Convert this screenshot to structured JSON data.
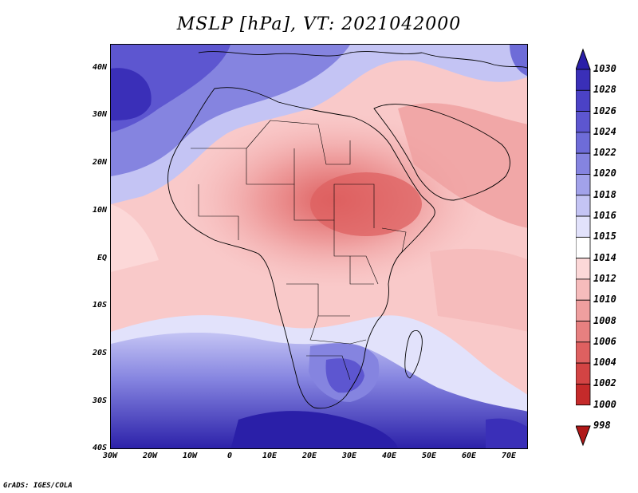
{
  "title": "MSLP [hPa], VT: 2021042000",
  "footer": "GrADS: IGES/COLA",
  "y_axis_labels": [
    "40N",
    "30N",
    "20N",
    "10N",
    "EQ",
    "10S",
    "20S",
    "30S",
    "40S"
  ],
  "x_axis_labels": [
    "30W",
    "20W",
    "10W",
    "0",
    "10E",
    "20E",
    "30E",
    "40E",
    "50E",
    "60E",
    "70E"
  ],
  "colorbar": {
    "labels": [
      "1030",
      "1028",
      "1026",
      "1024",
      "1022",
      "1020",
      "1018",
      "1016",
      "1015",
      "1014",
      "1012",
      "1010",
      "1008",
      "1006",
      "1004",
      "1002",
      "1000",
      "998"
    ],
    "colors": [
      "#2a1fa8",
      "#3a2fb8",
      "#4b42c6",
      "#5d56d0",
      "#6e6cd8",
      "#8584e0",
      "#a2a2ea",
      "#c4c4f4",
      "#e2e2fb",
      "#ffffff",
      "#fcd8d8",
      "#f6bcbc",
      "#ef9f9f",
      "#e78080",
      "#de6060",
      "#d34444",
      "#c52a2a",
      "#b01818"
    ]
  },
  "map_extent": {
    "lon_min": -30,
    "lon_max": 75,
    "lat_min": -40,
    "lat_max": 45
  }
}
